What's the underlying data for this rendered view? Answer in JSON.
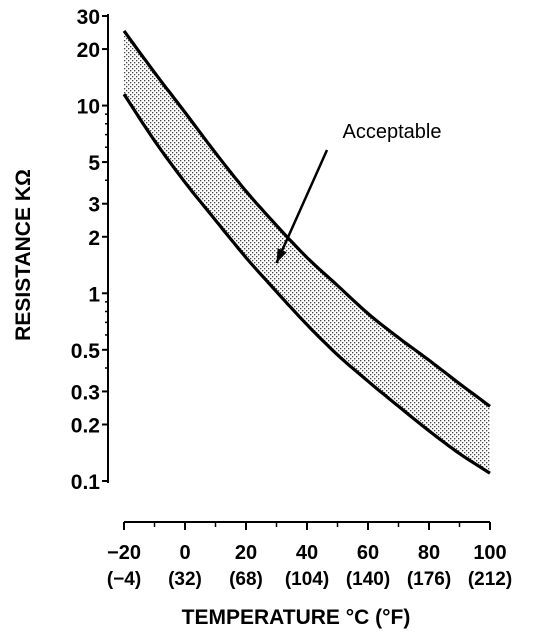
{
  "chart_data": {
    "type": "area",
    "title": "",
    "xlabel": "TEMPERATURE °C (°F)",
    "ylabel": "RESISTANCE KΩ",
    "y_scale": "log",
    "xlim": [
      -20,
      100
    ],
    "ylim": [
      0.1,
      30
    ],
    "grid": false,
    "x_ticks": [
      {
        "value": -20,
        "label": "−20",
        "sublabel": "(−4)"
      },
      {
        "value": 0,
        "label": "0",
        "sublabel": "(32)"
      },
      {
        "value": 20,
        "label": "20",
        "sublabel": "(68)"
      },
      {
        "value": 40,
        "label": "40",
        "sublabel": "(104)"
      },
      {
        "value": 60,
        "label": "60",
        "sublabel": "(140)"
      },
      {
        "value": 80,
        "label": "80",
        "sublabel": "(176)"
      },
      {
        "value": 100,
        "label": "100",
        "sublabel": "(212)"
      }
    ],
    "y_ticks_major": [
      {
        "value": 0.1,
        "label": "0.1"
      },
      {
        "value": 0.2,
        "label": "0.2"
      },
      {
        "value": 0.3,
        "label": "0.3"
      },
      {
        "value": 0.5,
        "label": "0.5"
      },
      {
        "value": 1,
        "label": "1"
      },
      {
        "value": 2,
        "label": "2"
      },
      {
        "value": 3,
        "label": "3"
      },
      {
        "value": 5,
        "label": "5"
      },
      {
        "value": 10,
        "label": "10"
      },
      {
        "value": 20,
        "label": "20"
      },
      {
        "value": 30,
        "label": "30"
      }
    ],
    "y_ticks_minor": [
      0.4,
      0.6,
      0.7,
      0.8,
      0.9,
      4,
      6,
      7,
      8,
      9
    ],
    "series": [
      {
        "role": "upper",
        "x": [
          -20,
          -10,
          0,
          10,
          20,
          30,
          40,
          50,
          60,
          70,
          80,
          90,
          100
        ],
        "values": [
          25,
          15,
          9.2,
          5.6,
          3.5,
          2.3,
          1.55,
          1.1,
          0.78,
          0.58,
          0.44,
          0.33,
          0.25
        ]
      },
      {
        "role": "lower",
        "x": [
          -20,
          -10,
          0,
          10,
          20,
          30,
          40,
          50,
          60,
          70,
          80,
          90,
          100
        ],
        "values": [
          11.5,
          6.5,
          3.9,
          2.45,
          1.55,
          1.02,
          0.68,
          0.47,
          0.34,
          0.25,
          0.185,
          0.14,
          0.11
        ]
      }
    ],
    "annotations": [
      {
        "text": "Acceptable",
        "points_to": {
          "x": 30,
          "y": 1.45
        }
      }
    ]
  }
}
